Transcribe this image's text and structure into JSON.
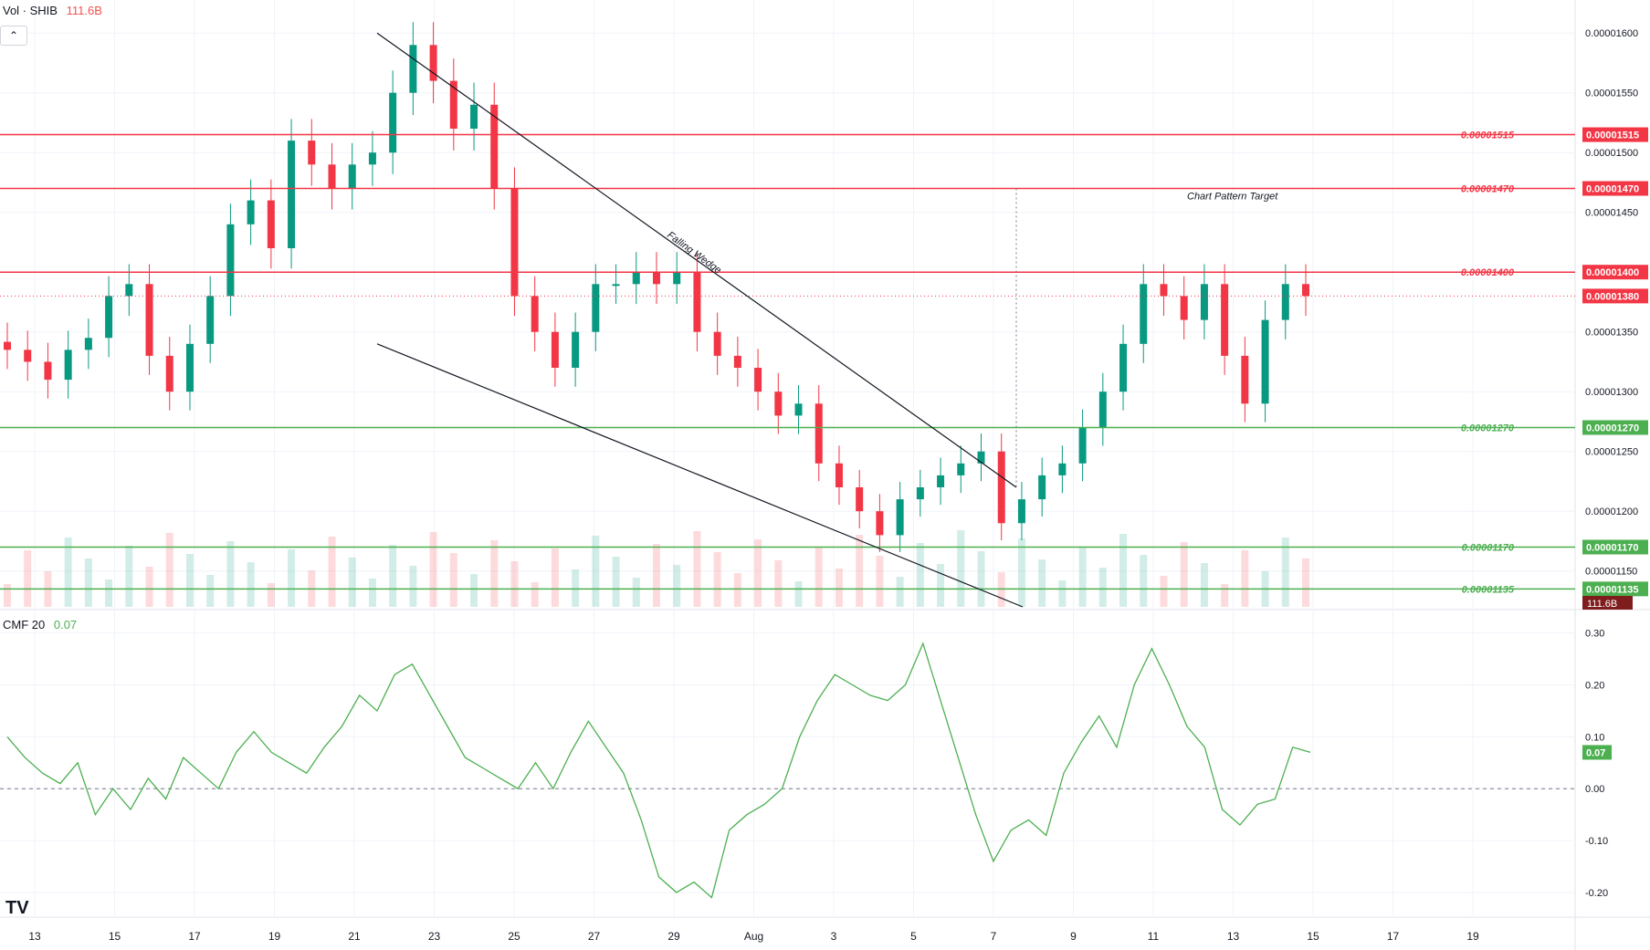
{
  "header": {
    "volume_label": "Vol · SHIB",
    "volume_value": "111.6B",
    "collapse_icon": "chevron-up-icon",
    "cmf_label": "CMF 20",
    "cmf_value": "0.07",
    "logo": "TV"
  },
  "chart_data": [
    {
      "type": "candlestick",
      "symbol": "SHIB",
      "ylim": [
        1.12e-05,
        1.62e-05
      ],
      "y_ticks": [
        "0.00001600",
        "0.00001550",
        "0.00001500",
        "0.00001450",
        "0.00001400",
        "0.00001350",
        "0.00001300",
        "0.00001250",
        "0.00001200",
        "0.00001150"
      ],
      "x_ticks": [
        "13",
        "15",
        "17",
        "19",
        "21",
        "23",
        "25",
        "27",
        "29",
        "Aug",
        "3",
        "5",
        "7",
        "9",
        "11",
        "13",
        "15",
        "17",
        "19"
      ],
      "horizontal_levels": [
        {
          "label": "0.00001515",
          "value": 1.515e-05,
          "color": "#f23645"
        },
        {
          "label": "0.00001470",
          "value": 1.47e-05,
          "color": "#f23645"
        },
        {
          "label": "0.00001400",
          "value": 1.4e-05,
          "color": "#f23645"
        },
        {
          "label": "0.00001270",
          "value": 1.27e-05,
          "color": "#4caf50"
        },
        {
          "label": "0.00001170",
          "value": 1.17e-05,
          "color": "#4caf50"
        },
        {
          "label": "0.00001135",
          "value": 1.135e-05,
          "color": "#4caf50"
        }
      ],
      "current_price": {
        "label": "0.00001380",
        "value": 1.38e-05
      },
      "volume_badge": "111.6B",
      "annotations": {
        "wedge": "Falling Wedge",
        "target": "Chart Pattern Target"
      },
      "close_series": [
        1.335e-05,
        1.325e-05,
        1.31e-05,
        1.335e-05,
        1.345e-05,
        1.38e-05,
        1.39e-05,
        1.33e-05,
        1.3e-05,
        1.34e-05,
        1.38e-05,
        1.44e-05,
        1.46e-05,
        1.42e-05,
        1.51e-05,
        1.49e-05,
        1.47e-05,
        1.49e-05,
        1.5e-05,
        1.55e-05,
        1.59e-05,
        1.56e-05,
        1.52e-05,
        1.54e-05,
        1.47e-05,
        1.38e-05,
        1.35e-05,
        1.32e-05,
        1.35e-05,
        1.39e-05,
        1.39e-05,
        1.4e-05,
        1.39e-05,
        1.4e-05,
        1.35e-05,
        1.33e-05,
        1.32e-05,
        1.3e-05,
        1.28e-05,
        1.29e-05,
        1.24e-05,
        1.22e-05,
        1.2e-05,
        1.18e-05,
        1.21e-05,
        1.22e-05,
        1.23e-05,
        1.24e-05,
        1.25e-05,
        1.19e-05,
        1.21e-05,
        1.23e-05,
        1.24e-05,
        1.27e-05,
        1.3e-05,
        1.34e-05,
        1.39e-05,
        1.38e-05,
        1.36e-05,
        1.39e-05,
        1.33e-05,
        1.29e-05,
        1.36e-05,
        1.39e-05,
        1.38e-05
      ]
    },
    {
      "type": "line",
      "name": "CMF 20",
      "ylim": [
        -0.23,
        0.31
      ],
      "y_ticks": [
        "0.30",
        "0.20",
        "0.10",
        "0.00",
        "-0.10",
        "-0.20"
      ],
      "current_value": "0.07",
      "values": [
        0.1,
        0.06,
        0.03,
        0.01,
        0.05,
        -0.05,
        0.0,
        -0.04,
        0.02,
        -0.02,
        0.06,
        0.03,
        0.0,
        0.07,
        0.11,
        0.07,
        0.05,
        0.03,
        0.08,
        0.12,
        0.18,
        0.15,
        0.22,
        0.24,
        0.18,
        0.12,
        0.06,
        0.04,
        0.02,
        0.0,
        0.05,
        0.0,
        0.07,
        0.13,
        0.08,
        0.03,
        -0.06,
        -0.17,
        -0.2,
        -0.18,
        -0.21,
        -0.08,
        -0.05,
        -0.03,
        0.0,
        0.1,
        0.17,
        0.22,
        0.2,
        0.18,
        0.17,
        0.2,
        0.28,
        0.17,
        0.06,
        -0.05,
        -0.14,
        -0.08,
        -0.06,
        -0.09,
        0.03,
        0.09,
        0.14,
        0.08,
        0.2,
        0.27,
        0.2,
        0.12,
        0.08,
        -0.04,
        -0.07,
        -0.03,
        -0.02,
        0.08,
        0.07
      ]
    }
  ]
}
